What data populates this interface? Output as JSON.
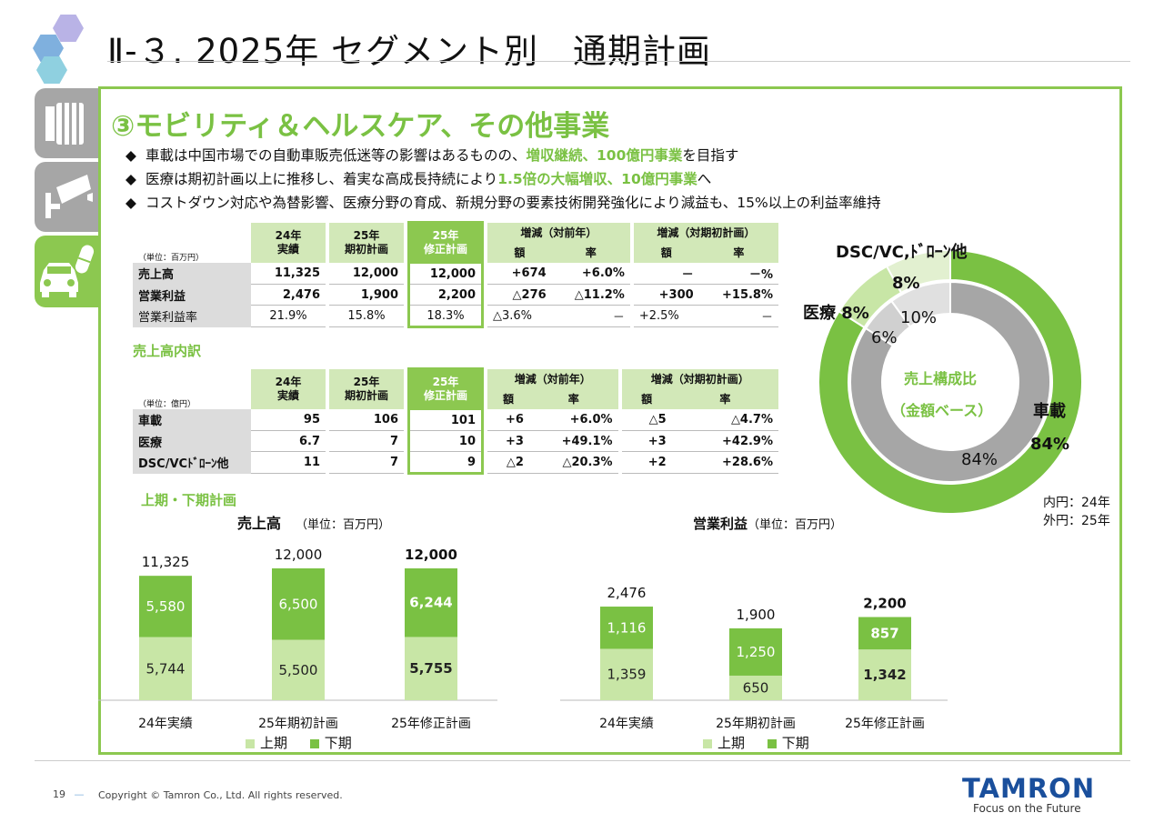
{
  "title": "Ⅱ-３. 2025年 セグメント別　通期計画",
  "section_title": "③モビリティ＆ヘルスケア、その他事業",
  "bullets": [
    {
      "marker": "◆",
      "pre": "車載は中国市場での自動車販売低迷等の影響はあるものの、",
      "em": "増収継続、100億円事業",
      "post": "を目指す"
    },
    {
      "marker": "◆",
      "pre": "医療は期初計画以上に推移し、着実な高成長持続により",
      "em": "1.5倍の大幅増収、10億円事業",
      "post": "へ"
    },
    {
      "marker": "◆",
      "pre": "コストダウン対応や為替影響、医療分野の育成、新規分野の要素技術開発強化により減益も、15%以上の利益率維持",
      "em": "",
      "post": ""
    }
  ],
  "table1": {
    "unit": "（単位：百万円）",
    "h_24": "24年\n実績",
    "h_25plan": "25年\n期初計画",
    "h_25rev": "25年\n修正計画",
    "h_yoy": "増減（対前年）",
    "h_vsplan": "増減（対期初計画）",
    "h_amt": "額",
    "h_rate": "率",
    "rows": [
      {
        "label": "売上高",
        "c1": "11,325",
        "c2": "12,000",
        "c3": "12,000",
        "c4": "+674",
        "c5": "+6.0%",
        "c6": "－",
        "c7": "－%"
      },
      {
        "label": "営業利益",
        "c1": "2,476",
        "c2": "1,900",
        "c3": "2,200",
        "c4": "△276",
        "c5": "△11.2%",
        "c6": "+300",
        "c7": "+15.8%"
      },
      {
        "label": "営業利益率",
        "c1": "21.9%",
        "c2": "15.8%",
        "c3": "18.3%",
        "c4": "△3.6%",
        "c5": "－",
        "c6": "+2.5%",
        "c7": "－"
      }
    ]
  },
  "breakdown_title": "売上高内訳",
  "table2": {
    "unit": "（単位：億円）",
    "h_24": "24年\n実績",
    "h_25plan": "25年\n期初計画",
    "h_25rev": "25年\n修正計画",
    "h_yoy": "増減（対前年）",
    "h_vsplan": "増減（対期初計画）",
    "h_amt": "額",
    "h_rate": "率",
    "rows": [
      {
        "label": "車載",
        "c1": "95",
        "c2": "106",
        "c3": "101",
        "c4": "+6",
        "c5": "+6.0%",
        "c6": "△5",
        "c7": "△4.7%"
      },
      {
        "label": "医療",
        "c1": "6.7",
        "c2": "7",
        "c3": "10",
        "c4": "+3",
        "c5": "+49.1%",
        "c6": "+3",
        "c7": "+42.9%"
      },
      {
        "label": "DSC/VCﾄﾞﾛｰﾝ他",
        "c1": "11",
        "c2": "7",
        "c3": "9",
        "c4": "△2",
        "c5": "△20.3%",
        "c6": "+2",
        "c7": "+28.6%"
      }
    ]
  },
  "half_title": "上期・下期計画",
  "chart_data": [
    {
      "type": "bar",
      "title": "売上高",
      "unit": "（単位：百万円）",
      "categories": [
        "24年実績",
        "25年期初計画",
        "25年修正計画"
      ],
      "series": [
        {
          "name": "上期",
          "values": [
            5744,
            5500,
            5755
          ],
          "labels": [
            "5,744",
            "5,500",
            "5,755"
          ]
        },
        {
          "name": "下期",
          "values": [
            5580,
            6500,
            6244
          ],
          "labels": [
            "5,580",
            "6,500",
            "6,244"
          ]
        }
      ],
      "totals": [
        "11,325",
        "12,000",
        "12,000"
      ],
      "stacked": true,
      "ylim": [
        0,
        13000
      ]
    },
    {
      "type": "bar",
      "title": "営業利益",
      "unit": "（単位：百万円）",
      "categories": [
        "24年実績",
        "25年期初計画",
        "25年修正計画"
      ],
      "series": [
        {
          "name": "上期",
          "values": [
            1359,
            650,
            1342
          ],
          "labels": [
            "1,359",
            "650",
            "1,342"
          ]
        },
        {
          "name": "下期",
          "values": [
            1116,
            1250,
            857
          ],
          "labels": [
            "1,116",
            "1,250",
            "857"
          ]
        }
      ],
      "totals": [
        "2,476",
        "1,900",
        "2,200"
      ],
      "stacked": true,
      "ylim": [
        0,
        2800
      ]
    },
    {
      "type": "pie",
      "title": "売上構成比（金額ベース）",
      "inner": {
        "name": "24年",
        "values": [
          84,
          6,
          10
        ],
        "labels": [
          "84%",
          "6%",
          "10%"
        ]
      },
      "outer": {
        "name": "25年",
        "values": [
          84,
          8,
          8
        ],
        "labels": [
          "84%",
          "8%",
          "8%"
        ]
      },
      "categories": [
        "車載",
        "医療",
        "DSC/VC,ﾄﾞﾛｰﾝ他"
      ]
    }
  ],
  "donut": {
    "center1": "売上構成比",
    "center2": "（金額ベース）",
    "cat_dsc": "DSC/VC,ﾄﾞﾛｰﾝ他",
    "cat_med": "医療",
    "cat_car": "車載",
    "note1": "内円：24年",
    "note2": "外円：25年"
  },
  "legend": {
    "first": "上期",
    "second": "下期"
  },
  "colors": {
    "accent": "#7ac143",
    "frame": "#8cc850",
    "light": "#c8e6a6",
    "mid": "#d2e8b8",
    "gray": "#a6a6a6",
    "lightgray": "#d0d0d0"
  },
  "icons": [
    "camera-lens-icon",
    "surveillance-camera-icon",
    "car-icon",
    "medical-capsule-icon"
  ],
  "footer": {
    "page": "19",
    "dash": "—",
    "copyright": "Copyright © Tamron Co., Ltd. All rights reserved.",
    "brand": "TAMRON",
    "tagline": "Focus on the Future"
  }
}
